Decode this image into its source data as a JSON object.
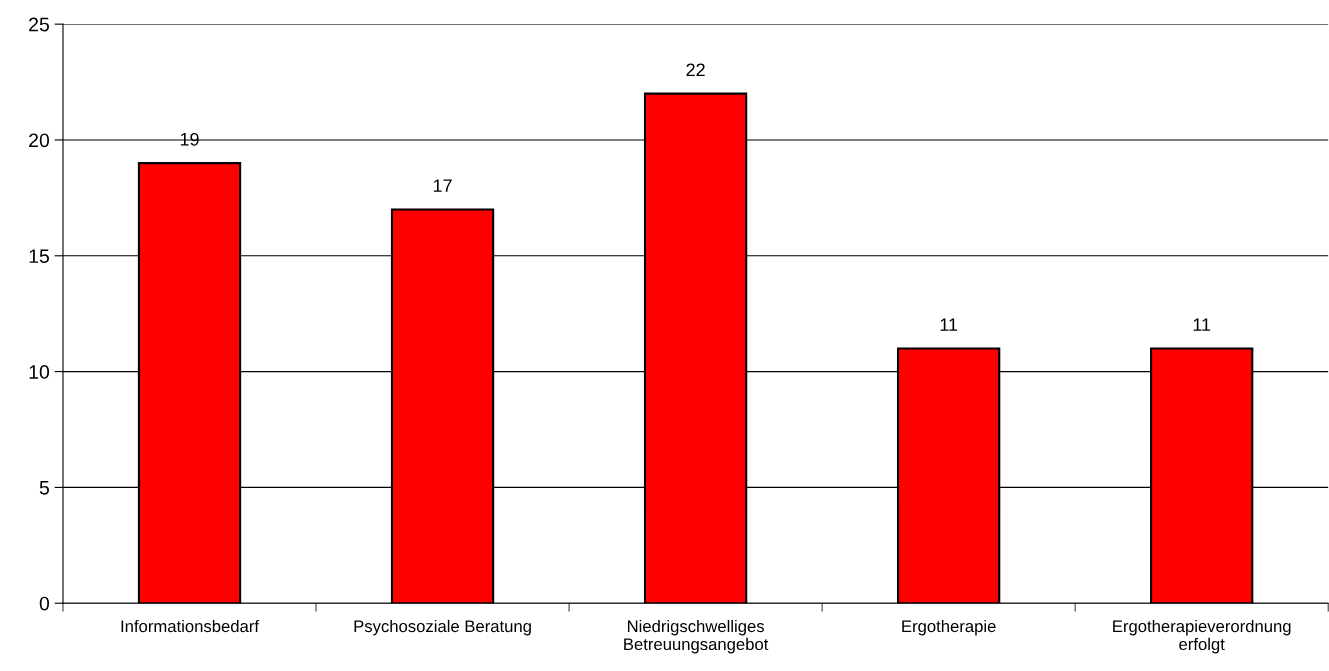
{
  "chart_data": {
    "type": "bar",
    "categories": [
      "Informationsbedarf",
      "Psychosoziale Beratung",
      "Niedrigschwelliges\nBetreuungsangebot",
      "Ergotherapie",
      "Ergotherapieverordnung\nerfolgt"
    ],
    "values": [
      19,
      17,
      22,
      11,
      11
    ],
    "color": "#ff0000",
    "ylim": [
      0,
      25
    ],
    "yticks": [
      0,
      5,
      10,
      15,
      20,
      25
    ],
    "grid": "y",
    "data_labels": true
  }
}
